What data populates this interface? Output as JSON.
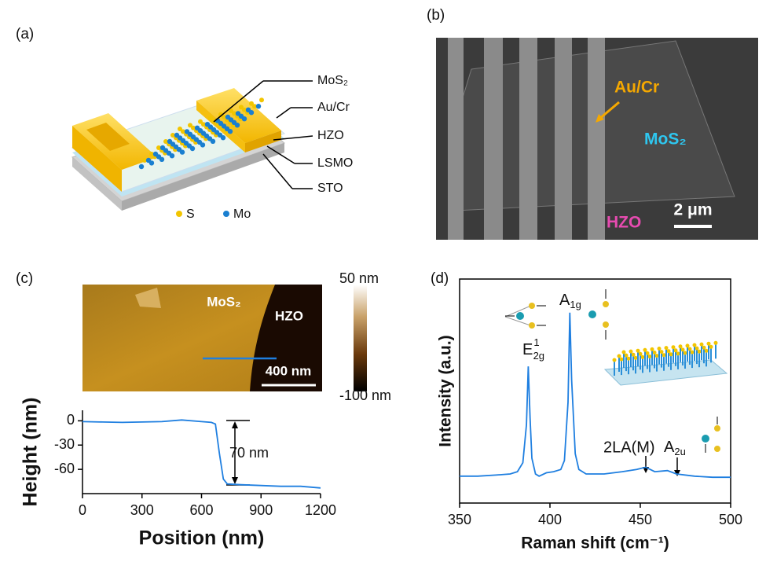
{
  "panels": [
    {
      "label": "(a)",
      "layers": [
        "MoS₂",
        "Au/Cr",
        "HZO",
        "LSMO",
        "STO"
      ],
      "legend": [
        "S",
        "Mo"
      ]
    },
    {
      "label": "(b)",
      "annotations": [
        "Au/Cr",
        "MoS₂",
        "HZO"
      ],
      "scale_bar": "2 μm"
    },
    {
      "label": "(c)",
      "annotations": [
        "MoS₂",
        "HZO"
      ],
      "scale_bar": "400 nm",
      "colorbar": [
        "50 nm",
        "-100 nm"
      ]
    },
    {
      "label": "(d)"
    }
  ],
  "chart_data": [
    {
      "type": "line",
      "x_label": "Position (nm)",
      "y_label": "Height (nm)",
      "x": [
        0,
        100,
        200,
        300,
        400,
        500,
        600,
        650,
        670,
        690,
        710,
        730,
        800,
        900,
        1000,
        1100,
        1200
      ],
      "series": [
        {
          "color": "#1f7fe0",
          "values": [
            -1,
            -1.5,
            -2,
            -1.5,
            -1,
            1,
            -1,
            -2,
            -4,
            -40,
            -72,
            -78,
            -79,
            -80,
            -81,
            -81,
            -83
          ]
        }
      ],
      "xlim": [
        0,
        1200
      ],
      "ylim": [
        -90,
        13
      ],
      "xticks": [
        0,
        300,
        600,
        900,
        1200
      ],
      "yticks": [
        0,
        -30,
        -60
      ],
      "annotations": [
        "70 nm"
      ]
    },
    {
      "type": "line",
      "x_label": "Raman shift (cm⁻¹)",
      "y_label": "Intensity (a.u.)",
      "x": [
        350,
        360,
        370,
        378,
        382,
        385,
        387,
        388,
        389,
        390,
        392,
        394,
        398,
        402,
        406,
        408,
        410,
        411,
        412,
        414,
        416,
        420,
        430,
        440,
        448,
        453,
        458,
        465,
        470,
        480,
        490,
        500
      ],
      "series": [
        {
          "color": "#1f7fe0",
          "values": [
            12,
            12,
            12.5,
            13,
            14,
            18,
            35,
            61,
            38,
            20,
            13,
            12,
            13.5,
            14,
            15,
            19,
            45,
            85,
            55,
            22,
            15,
            13,
            13,
            14,
            15,
            16,
            14,
            14.5,
            13,
            12,
            11.5,
            11.5
          ]
        }
      ],
      "xlim": [
        350,
        500
      ],
      "ylim": [
        0,
        100
      ],
      "xticks": [
        350,
        400,
        450,
        500
      ],
      "annotations": [
        {
          "base": "E",
          "sup": "1",
          "sub": "2g"
        },
        {
          "base": "A",
          "sub": "1g"
        },
        {
          "text": "2LA(M)"
        },
        {
          "base": "A",
          "sub": "2u"
        }
      ]
    }
  ]
}
